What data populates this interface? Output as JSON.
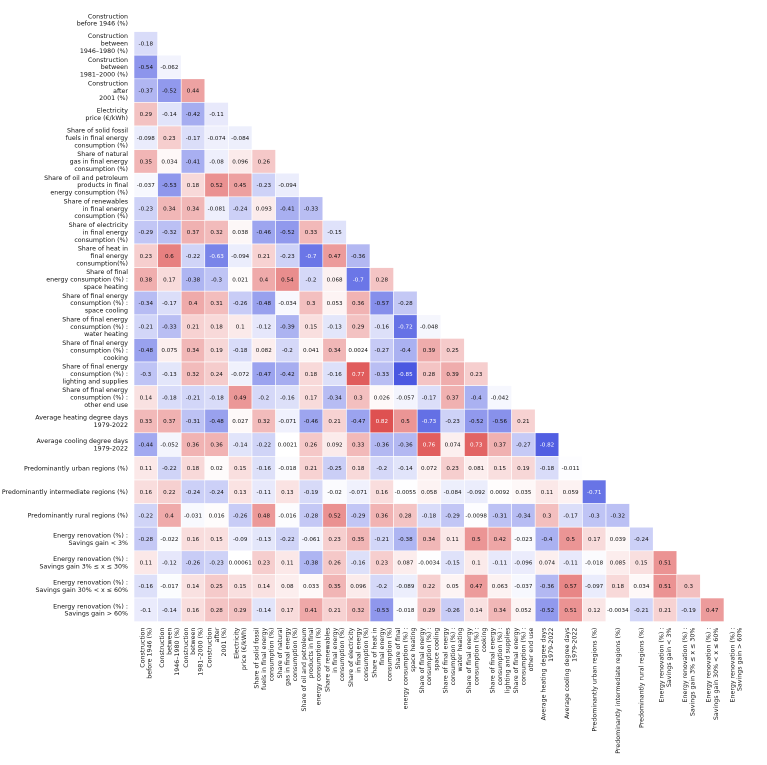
{
  "chart_data": {
    "type": "heatmap",
    "variables": [
      "Construction before 1946 (%)",
      "Construction between 1946–1980 (%)",
      "Construction between 1981–2000 (%)",
      "Construction after 2001 (%)",
      "Electricity price (€/kWh)",
      "Share of solid fossil fuels in final energy consumption (%)",
      "Share of natural gas in final energy consumption (%)",
      "Share of oil and petroleum products in final energy consumption (%)",
      "Share of renewables in final energy consumption (%)",
      "Share of electricity in final energy consumption (%)",
      "Share of heat in final energy consumption(%)",
      "Share of final energy consumption (%) : space heating",
      "Share of final energy consumption (%) : space cooling",
      "Share of final energy consumption (%) : water heating",
      "Share of final energy consumption (%) : cooking",
      "Share of final energy consumption (%) : lighting and supplies",
      "Share of final energy consumption (%) : other end use",
      "Average heating degree days 1979-2022",
      "Average cooling degree days 1979-2022",
      "Predominantly urban regions (%)",
      "Predominantly intermediate regions (%)",
      "Predominantly rural regions (%)",
      "Energy renovation (%) : Savings gain < 3%",
      "Energy renovation (%) : Savings gain 3% ≤ x ≤ 30%",
      "Energy renovation (%) : Savings gain 30% < x ≤ 60%",
      "Energy renovation (%) : Savings gain > 60%"
    ],
    "row_labels": [
      [
        "Construction",
        "before 1946 (%)"
      ],
      [
        "Construction",
        "between",
        "1946–1980 (%)"
      ],
      [
        "Construction",
        "between",
        "1981–2000 (%)"
      ],
      [
        "Construction",
        "after",
        "2001 (%)"
      ],
      [
        "Electricity",
        "price (€/kWh)"
      ],
      [
        "Share of solid fossil",
        "fuels in final energy",
        "consumption (%)"
      ],
      [
        "Share of natural",
        "gas in final energy",
        "consumption (%)"
      ],
      [
        "Share of oil and petroleum",
        "products in final",
        "energy consumption (%)"
      ],
      [
        "Share of renewables",
        "in final energy",
        "consumption (%)"
      ],
      [
        "Share of electricity",
        "in final energy",
        "consumption  (%)"
      ],
      [
        "Share of heat in",
        "final energy",
        "consumption(%)"
      ],
      [
        "Share of final",
        "energy consumption (%) :",
        "space heating"
      ],
      [
        "Share of final energy",
        "consumption (%) :",
        "space cooling"
      ],
      [
        "Share of final energy",
        "consumption (%) :",
        "water heating"
      ],
      [
        "Share of final energy",
        "consumption (%) :",
        "cooking"
      ],
      [
        "Share of final energy",
        "consumption (%) :",
        "lighting and supplies"
      ],
      [
        "Share of final energy",
        "consumption (%) :",
        "other end use"
      ],
      [
        "Average heating degree days",
        "1979-2022"
      ],
      [
        "Average cooling degree days",
        "1979-2022"
      ],
      [
        "Predominantly urban regions (%)"
      ],
      [
        "Predominantly intermediate regions (%)"
      ],
      [
        "Predominantly rural regions (%)"
      ],
      [
        "Energy renovation (%) :",
        "Savings gain < 3%"
      ],
      [
        "Energy renovation (%) :",
        "Savings gain 3% ≤ x ≤ 30%"
      ],
      [
        "Energy renovation (%) :",
        "Savings gain 30% < x ≤ 60%"
      ],
      [
        "Energy renovation (%) :",
        "Savings gain  > 60%"
      ]
    ],
    "col_labels": [
      [
        "Construction",
        "before 1946 (%)"
      ],
      [
        "Construction",
        "between",
        "1946–1980 (%)"
      ],
      [
        "Construction",
        "between",
        "1981–2000 (%)"
      ],
      [
        "Construction",
        "after",
        "2001 (%)"
      ],
      [
        "Electricity",
        "price (€/kWh)"
      ],
      [
        "Share of solid fossil",
        "fuels in final energy",
        "consumption (%)"
      ],
      [
        "Share of natural",
        "gas in final energy",
        "consumption (%)"
      ],
      [
        "Share of oil and petroleum",
        "products in final",
        "energy consumption (%)"
      ],
      [
        "Share of renewables",
        "in final energy",
        "consumption (%)"
      ],
      [
        "Share of electricity",
        "in final energy",
        "consumption (%)"
      ],
      [
        "Share of heat in",
        "final energy",
        "consumption (%)"
      ],
      [
        "Share of final",
        "energy consumption (%) :",
        "space heating"
      ],
      [
        "Share of final energy",
        "consumption (%) :",
        "space cooling"
      ],
      [
        "Share of final energy",
        "consumption (%) :",
        "water heating"
      ],
      [
        "Share of final energy",
        "consumption (%) :",
        "cooking"
      ],
      [
        "Share of final energy",
        "consumption (%) :",
        "lighting and supplies"
      ],
      [
        "Share of final energy",
        "consumption (%) :",
        "other end use"
      ],
      [
        "Average heating degree days",
        "1979-2022"
      ],
      [
        "Average cooling degree days",
        "1979-2022"
      ],
      [
        "Predominantly urban regions (%)"
      ],
      [
        "Predominantly intermediate regions (%)"
      ],
      [
        "Predominantly rural regions (%)"
      ],
      [
        "Energy renovation (%) :",
        "Savings gain < 3%"
      ],
      [
        "Energy renovation (%) :",
        "Savings gain 3% ≤ x ≤ 30%"
      ],
      [
        "Energy renovation (%) :",
        "Savings gain 30% < x ≤ 60%"
      ],
      [
        "Energy renovation (%) :",
        "Savings gain  > 60%"
      ]
    ],
    "lower_triangle": [
      [],
      [
        -0.18
      ],
      [
        -0.54,
        -0.062
      ],
      [
        -0.37,
        -0.52,
        0.44
      ],
      [
        0.29,
        -0.14,
        -0.42,
        -0.11
      ],
      [
        -0.098,
        0.23,
        -0.17,
        -0.074,
        -0.084
      ],
      [
        0.35,
        0.034,
        -0.41,
        -0.08,
        0.096,
        0.26
      ],
      [
        -0.037,
        -0.53,
        0.18,
        0.52,
        0.45,
        -0.23,
        -0.094
      ],
      [
        -0.23,
        0.34,
        0.34,
        -0.081,
        -0.24,
        0.093,
        -0.41,
        -0.33
      ],
      [
        -0.29,
        -0.32,
        0.37,
        0.32,
        0.038,
        -0.46,
        -0.52,
        0.33,
        -0.15
      ],
      [
        0.23,
        0.6,
        -0.22,
        -0.63,
        -0.094,
        0.21,
        -0.23,
        -0.7,
        0.47,
        -0.36
      ],
      [
        0.38,
        0.17,
        -0.38,
        -0.3,
        0.021,
        0.4,
        0.54,
        -0.2,
        0.068,
        -0.7,
        0.28
      ],
      [
        -0.34,
        -0.17,
        0.4,
        0.31,
        -0.26,
        -0.48,
        -0.034,
        0.3,
        0.053,
        0.36,
        -0.57,
        -0.28
      ],
      [
        -0.21,
        -0.33,
        0.21,
        0.18,
        0.1,
        -0.12,
        -0.39,
        0.15,
        -0.13,
        0.29,
        -0.16,
        -0.72,
        -0.048
      ],
      [
        -0.48,
        0.075,
        0.34,
        0.19,
        -0.18,
        0.082,
        -0.2,
        0.041,
        0.34,
        0.0024,
        -0.27,
        -0.4,
        0.39,
        0.25
      ],
      [
        -0.3,
        -0.13,
        0.32,
        0.24,
        -0.072,
        -0.47,
        -0.42,
        0.18,
        -0.16,
        0.77,
        -0.33,
        -0.85,
        0.28,
        0.39,
        0.23
      ],
      [
        0.14,
        -0.18,
        -0.21,
        -0.18,
        0.49,
        -0.2,
        -0.16,
        0.17,
        -0.34,
        0.3,
        0.026,
        -0.057,
        -0.17,
        0.37,
        -0.4,
        -0.042
      ],
      [
        0.33,
        0.37,
        -0.31,
        -0.48,
        0.027,
        0.32,
        -0.071,
        -0.46,
        0.21,
        -0.47,
        0.82,
        0.5,
        -0.73,
        -0.23,
        -0.52,
        -0.56,
        0.21
      ],
      [
        -0.44,
        -0.052,
        0.36,
        0.36,
        -0.14,
        -0.22,
        0.0021,
        0.26,
        0.092,
        0.33,
        -0.36,
        -0.36,
        0.76,
        0.074,
        0.73,
        0.37,
        -0.27,
        -0.82
      ],
      [
        0.11,
        -0.22,
        0.18,
        0.02,
        0.15,
        -0.16,
        -0.018,
        0.21,
        -0.25,
        0.18,
        -0.2,
        -0.14,
        0.072,
        0.23,
        0.081,
        0.15,
        0.19,
        -0.18,
        -0.011
      ],
      [
        0.16,
        0.22,
        -0.24,
        -0.24,
        0.13,
        -0.11,
        0.13,
        -0.19,
        -0.02,
        -0.071,
        0.16,
        -0.0055,
        0.058,
        -0.084,
        -0.092,
        0.0092,
        0.035,
        0.11,
        0.059,
        -0.71
      ],
      [
        -0.22,
        0.4,
        -0.031,
        0.016,
        -0.26,
        0.48,
        -0.016,
        -0.28,
        0.52,
        -0.29,
        0.36,
        0.28,
        -0.18,
        -0.29,
        -0.0098,
        -0.31,
        -0.34,
        0.3,
        -0.17,
        -0.3,
        -0.32
      ],
      [
        -0.28,
        -0.022,
        0.16,
        0.15,
        -0.09,
        -0.13,
        -0.22,
        -0.061,
        0.23,
        0.35,
        -0.21,
        -0.38,
        0.34,
        0.11,
        0.5,
        0.42,
        -0.023,
        -0.4,
        0.5,
        0.17,
        0.039,
        -0.24
      ],
      [
        0.11,
        -0.12,
        -0.26,
        -0.23,
        0.00061,
        0.23,
        0.11,
        -0.38,
        0.26,
        -0.16,
        0.23,
        0.087,
        -0.0034,
        -0.15,
        0.1,
        -0.11,
        -0.096,
        0.074,
        -0.11,
        -0.018,
        0.085,
        0.15,
        0.51
      ],
      [
        -0.16,
        -0.017,
        0.14,
        0.25,
        0.15,
        0.14,
        0.08,
        0.033,
        0.35,
        0.096,
        -0.2,
        -0.089,
        0.22,
        0.05,
        0.47,
        0.063,
        -0.037,
        -0.36,
        0.57,
        -0.097,
        0.18,
        0.034,
        0.51,
        0.3
      ],
      [
        -0.1,
        -0.14,
        0.16,
        0.28,
        0.29,
        -0.14,
        0.17,
        0.41,
        0.21,
        0.32,
        -0.53,
        -0.018,
        0.29,
        -0.26,
        0.14,
        0.34,
        0.052,
        -0.52,
        0.51,
        0.12,
        -0.0034,
        -0.21,
        0.21,
        -0.19,
        0.47
      ]
    ],
    "color_scale": {
      "negative": "#2b3bdc",
      "zero": "#ffffff",
      "positive": "#d72b2b",
      "vmin": -1,
      "vmax": 1
    },
    "colorbar": false
  }
}
